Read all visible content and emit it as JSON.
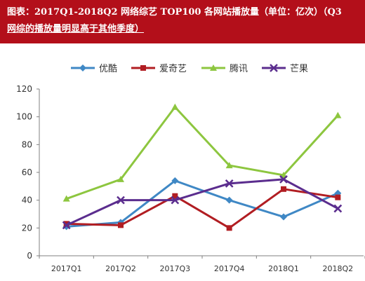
{
  "header": {
    "title_line1": "图表：2017Q1-2018Q2 网络综艺 TOP100 各网站播放量（单位：亿次）（Q3",
    "title_line2": "网综的播放量明显高于其他季度）"
  },
  "chart_data": {
    "type": "line",
    "title": "图表：2017Q1-2018Q2 网络综艺 TOP100 各网站播放量（单位：亿次）（Q3 网综的播放量明显高于其他季度）",
    "categories": [
      "2017Q1",
      "2017Q2",
      "2017Q3",
      "2017Q4",
      "2018Q1",
      "2018Q2"
    ],
    "ylim": [
      0,
      120
    ],
    "yticks": [
      0,
      20,
      40,
      60,
      80,
      100,
      120
    ],
    "grid": false,
    "legend_position": "top",
    "series": [
      {
        "name": "优酷",
        "color": "#3f88c5",
        "marker": "diamond",
        "values": [
          21,
          24,
          54,
          40,
          28,
          45
        ]
      },
      {
        "name": "爱奇艺",
        "color": "#b11d22",
        "marker": "square",
        "values": [
          23,
          22,
          43,
          20,
          48,
          42
        ]
      },
      {
        "name": "腾讯",
        "color": "#8dc63f",
        "marker": "triangle",
        "values": [
          41,
          55,
          107,
          65,
          58,
          101
        ]
      },
      {
        "name": "芒果",
        "color": "#5b2d8e",
        "marker": "x",
        "values": [
          22,
          40,
          40,
          52,
          55,
          34
        ]
      }
    ]
  }
}
